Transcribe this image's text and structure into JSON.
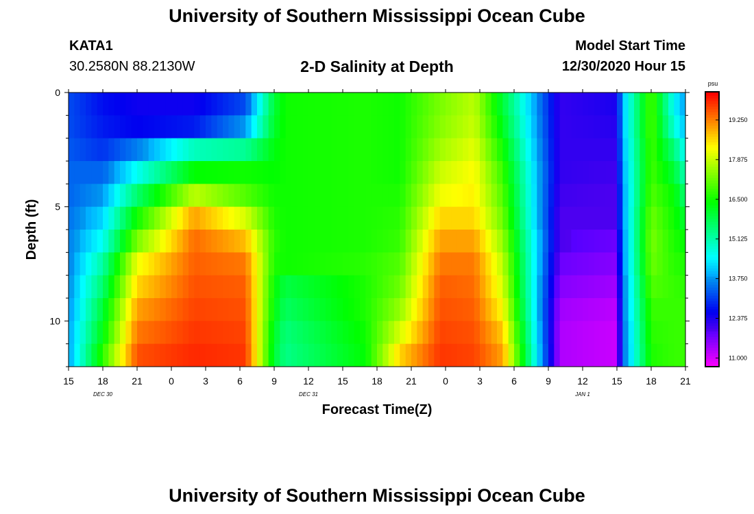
{
  "header": {
    "main_title": "University of Southern Mississippi Ocean Cube",
    "station_id": "KATA1",
    "station_coords": "30.2580N 88.2130W",
    "chart_title": "2-D Salinity at Depth",
    "start_label": "Model Start Time",
    "start_value": "12/30/2020 Hour 15"
  },
  "footer": {
    "title": "University of Southern Mississippi Ocean Cube"
  },
  "chart_data": {
    "type": "heatmap",
    "title": "2-D Salinity at Depth",
    "xlabel": "Forecast Time(Z)",
    "ylabel": "Depth (ft)",
    "x_tick_labels": [
      "15",
      "18",
      "21",
      "0",
      "3",
      "6",
      "9",
      "12",
      "15",
      "18",
      "21",
      "0",
      "3",
      "6",
      "9",
      "12",
      "15",
      "18",
      "21"
    ],
    "date_labels": [
      {
        "text": "DEC 30",
        "hour_index": 3
      },
      {
        "text": "DEC 31",
        "hour_index": 21
      },
      {
        "text": "JAN 1",
        "hour_index": 45
      }
    ],
    "y_ticks": [
      0,
      5,
      10
    ],
    "ylim": [
      0,
      12
    ],
    "colorbar": {
      "unit": "psu",
      "min": 10.7,
      "max": 20.2,
      "tick_values": [
        11.0,
        12.375,
        13.75,
        15.125,
        16.5,
        17.875,
        19.25
      ],
      "tick_labels": [
        "11.000",
        "12.375",
        "13.750",
        "15.125",
        "16.500",
        "17.875",
        "19.250"
      ]
    },
    "x_hours_range": [
      0,
      54
    ],
    "depth_levels_ft": [
      0.5,
      1.5,
      2.5,
      3.5,
      4.5,
      5.5,
      6.5,
      7.5,
      8.5,
      9.5,
      10.5,
      11.5
    ],
    "time_step_hours": 0.5,
    "salinity_profiles_psu": [
      {
        "hour": 0,
        "values": [
          13.2,
          13.2,
          13.3,
          13.4,
          13.4,
          13.5,
          13.6,
          13.6,
          13.7,
          13.7,
          13.8,
          13.8
        ]
      },
      {
        "hour": 3,
        "values": [
          12.7,
          12.8,
          13.0,
          13.4,
          13.8,
          14.2,
          14.6,
          15.2,
          15.6,
          16.0,
          16.3,
          16.7
        ]
      },
      {
        "hour": 6,
        "values": [
          12.5,
          12.6,
          13.6,
          14.6,
          15.6,
          16.5,
          17.3,
          18.2,
          18.6,
          19.0,
          19.3,
          19.6
        ]
      },
      {
        "hour": 11,
        "values": [
          12.5,
          12.8,
          15.0,
          16.4,
          17.8,
          19.0,
          19.4,
          19.5,
          19.6,
          19.7,
          19.8,
          19.9
        ]
      },
      {
        "hour": 15.5,
        "values": [
          13.2,
          13.8,
          15.3,
          16.5,
          17.0,
          18.0,
          18.8,
          19.3,
          19.5,
          19.6,
          19.7,
          19.8
        ]
      },
      {
        "hour": 18,
        "values": [
          16.0,
          16.1,
          16.3,
          16.4,
          16.5,
          16.6,
          16.7,
          16.6,
          16.4,
          16.3,
          16.1,
          16.0
        ]
      },
      {
        "hour": 19,
        "values": [
          16.5,
          16.5,
          16.5,
          16.5,
          16.5,
          16.5,
          16.5,
          16.5,
          15.9,
          15.7,
          15.5,
          15.4
        ]
      },
      {
        "hour": 26,
        "values": [
          16.6,
          16.6,
          16.6,
          16.6,
          16.6,
          16.6,
          16.6,
          16.7,
          16.6,
          16.6,
          16.5,
          16.4
        ]
      },
      {
        "hour": 29,
        "values": [
          16.5,
          16.5,
          16.5,
          16.5,
          16.6,
          16.7,
          16.8,
          17.0,
          17.2,
          17.5,
          18.0,
          18.6
        ]
      },
      {
        "hour": 32.5,
        "values": [
          17.3,
          17.4,
          17.6,
          17.9,
          18.2,
          18.6,
          19.0,
          19.3,
          19.5,
          19.6,
          19.7,
          19.8
        ]
      },
      {
        "hour": 35.5,
        "values": [
          17.8,
          17.9,
          18.1,
          18.3,
          18.4,
          18.6,
          19.0,
          19.3,
          19.4,
          19.5,
          19.6,
          19.7
        ]
      },
      {
        "hour": 38,
        "values": [
          16.0,
          16.2,
          16.5,
          16.8,
          17.0,
          17.2,
          17.5,
          17.8,
          18.0,
          18.3,
          18.7,
          19.0
        ]
      },
      {
        "hour": 43,
        "values": [
          12.2,
          12.2,
          12.2,
          12.2,
          12.1,
          12.0,
          12.0,
          11.8,
          11.6,
          11.4,
          11.3,
          11.3
        ]
      },
      {
        "hour": 48,
        "values": [
          12.4,
          12.3,
          12.2,
          12.1,
          12.0,
          12.0,
          11.8,
          11.6,
          11.4,
          11.2,
          11.1,
          11.1
        ]
      },
      {
        "hour": 48.5,
        "values": [
          14.0,
          14.0,
          13.9,
          13.8,
          13.7,
          13.7,
          13.6,
          13.6,
          13.5,
          13.5,
          13.4,
          13.4
        ]
      },
      {
        "hour": 51,
        "values": [
          17.0,
          17.0,
          16.9,
          16.9,
          17.0,
          17.2,
          17.3,
          17.2,
          17.0,
          16.8,
          16.7,
          16.6
        ]
      },
      {
        "hour": 53,
        "values": [
          14.5,
          14.8,
          15.5,
          16.0,
          16.4,
          16.5,
          16.6,
          16.7,
          16.8,
          16.8,
          16.8,
          16.8
        ]
      },
      {
        "hour": 54,
        "values": [
          13.8,
          14.0,
          14.5,
          15.0,
          15.5,
          16.0,
          16.4,
          16.6,
          16.7,
          16.8,
          16.8,
          16.8
        ]
      }
    ]
  }
}
